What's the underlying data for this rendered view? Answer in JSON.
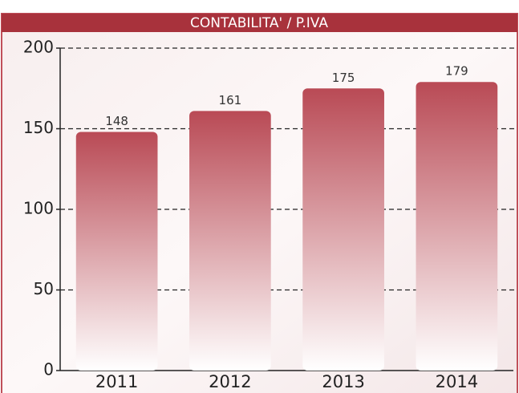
{
  "chart_data": {
    "type": "bar",
    "title": "CONTABILITA' / P.IVA",
    "categories": [
      "2011",
      "2012",
      "2013",
      "2014"
    ],
    "values": [
      148,
      161,
      175,
      179
    ],
    "color": "#b94a55",
    "ylim": [
      0,
      200
    ],
    "yticks": [
      0,
      50,
      100,
      150,
      200
    ],
    "grid": true
  }
}
